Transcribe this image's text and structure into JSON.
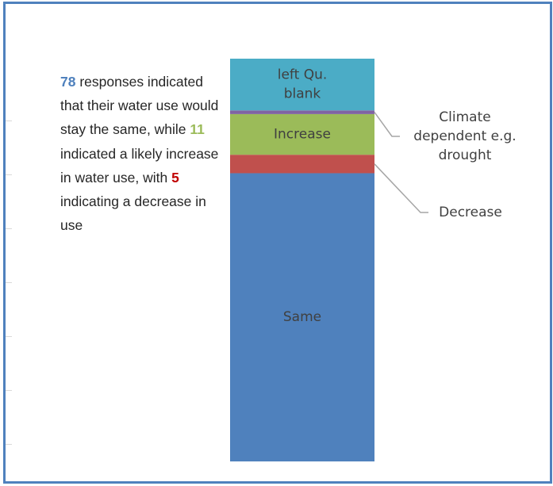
{
  "summary": {
    "same_count": "78",
    "text_1": " responses indicated that their water use would stay the same, while ",
    "increase_count": "11",
    "text_2": " indicated a likely increase in water use, with ",
    "decrease_count": "5",
    "text_3": " indicating a decrease in use"
  },
  "chart_data": {
    "type": "bar",
    "stacked": true,
    "categories": [
      ""
    ],
    "series": [
      {
        "name": "Same",
        "values": [
          78
        ],
        "color": "#4f81bd"
      },
      {
        "name": "Decrease",
        "values": [
          5
        ],
        "color": "#c0504d"
      },
      {
        "name": "Increase",
        "values": [
          11
        ],
        "color": "#9bbb59"
      },
      {
        "name": "Climate dependent e.g. drought",
        "values": [
          1
        ],
        "color": "#8064a2"
      },
      {
        "name": "left Qu. blank",
        "values": [
          14
        ],
        "color": "#4bacc6"
      }
    ],
    "title": "",
    "xlabel": "",
    "ylabel": "",
    "ylim": [
      0,
      109
    ],
    "segment_labels": [
      {
        "series": "left Qu. blank",
        "lines": [
          "left Qu.",
          "blank"
        ]
      },
      {
        "series": "Increase",
        "lines": [
          "Increase"
        ]
      },
      {
        "series": "Same",
        "lines": [
          "Same"
        ]
      }
    ],
    "callouts": [
      {
        "series": "Climate dependent e.g. drought",
        "lines": [
          "Climate",
          "dependent e.g.",
          "drought"
        ]
      },
      {
        "series": "Decrease",
        "lines": [
          "Decrease"
        ]
      }
    ],
    "grid": false,
    "legend": "none"
  }
}
